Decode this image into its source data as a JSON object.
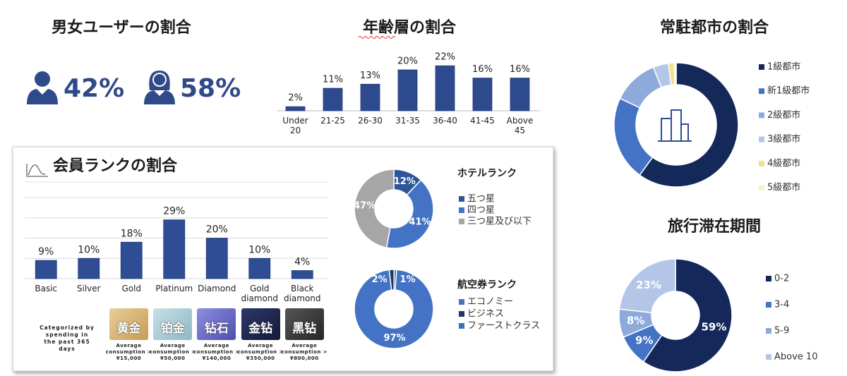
{
  "gender": {
    "title": "男女ユーザーの割合",
    "male": "42%",
    "female": "58%"
  },
  "chart_data": [
    {
      "type": "bar",
      "title": "年齢層の割合",
      "categories": [
        "Under 20",
        "21-25",
        "26-30",
        "31-35",
        "36-40",
        "41-45",
        "Above 45"
      ],
      "values": [
        2,
        11,
        13,
        20,
        22,
        16,
        16
      ],
      "value_labels": [
        "2%",
        "11%",
        "13%",
        "20%",
        "22%",
        "16%",
        "16%"
      ],
      "color": "#2e4a8f"
    },
    {
      "type": "donut",
      "title": "常駐都市の割合",
      "categories": [
        "1級都市",
        "新1級都市",
        "2級都市",
        "3級都市",
        "4級都市",
        "5級都市"
      ],
      "values": [
        60,
        22,
        12,
        4,
        1.5,
        0.5
      ],
      "colors": [
        "#14285a",
        "#4472c4",
        "#8eaadb",
        "#b4c6e7",
        "#f3e08a",
        "#fbf1c7"
      ],
      "legend": "right"
    },
    {
      "type": "bar",
      "title": "会員ランクの割合",
      "categories": [
        "Basic",
        "Silver",
        "Gold",
        "Platinum",
        "Diamond",
        "Gold diamond",
        "Black diamond"
      ],
      "values": [
        9,
        10,
        18,
        29,
        20,
        10,
        4
      ],
      "value_labels": [
        "9%",
        "10%",
        "18%",
        "29%",
        "20%",
        "10%",
        "4%"
      ],
      "color": "#2f4d95",
      "ylim": [
        0,
        40
      ],
      "yticks": [
        0,
        10,
        20,
        30,
        40
      ],
      "grid": true
    },
    {
      "type": "donut",
      "title": "ホテルランク",
      "categories": [
        "五つ星",
        "四つ星",
        "三つ星及び以下"
      ],
      "values": [
        12,
        41,
        47
      ],
      "value_labels": [
        "12%",
        "41%",
        "47%"
      ],
      "colors": [
        "#2e5597",
        "#4472c4",
        "#a6a6a6"
      ],
      "legend": "right"
    },
    {
      "type": "donut",
      "title": "航空券ランク",
      "categories": [
        "エコノミー",
        "ビジネス",
        "ファーストクラス"
      ],
      "values": [
        97,
        2,
        1
      ],
      "value_labels": [
        "97%",
        "2%",
        "1%"
      ],
      "colors": [
        "#4472c4",
        "#1f3864",
        "#2e75b6"
      ],
      "legend": "right"
    },
    {
      "type": "donut",
      "title": "旅行滞在期間",
      "categories": [
        "0-2",
        "3-4",
        "5-9",
        "Above 10"
      ],
      "values": [
        59,
        9,
        8,
        23
      ],
      "value_labels": [
        "59%",
        "9%",
        "8%",
        "23%"
      ],
      "colors": [
        "#14285a",
        "#4472c4",
        "#8eaadb",
        "#b4c6e7"
      ],
      "legend": "right"
    }
  ],
  "membership": {
    "note": "Categorized by spending in the past 365 days",
    "tiers": [
      {
        "name": "黄金",
        "spend": "Average consumption > ¥15,000"
      },
      {
        "name": "铂金",
        "spend": "Average consumption > ¥50,000"
      },
      {
        "name": "钻石",
        "spend": "Average consumption > ¥140,000"
      },
      {
        "name": "金钻",
        "spend": "Average consumption > ¥350,000"
      },
      {
        "name": "黑钻",
        "spend": "Average consumption > ¥800,000"
      }
    ]
  }
}
